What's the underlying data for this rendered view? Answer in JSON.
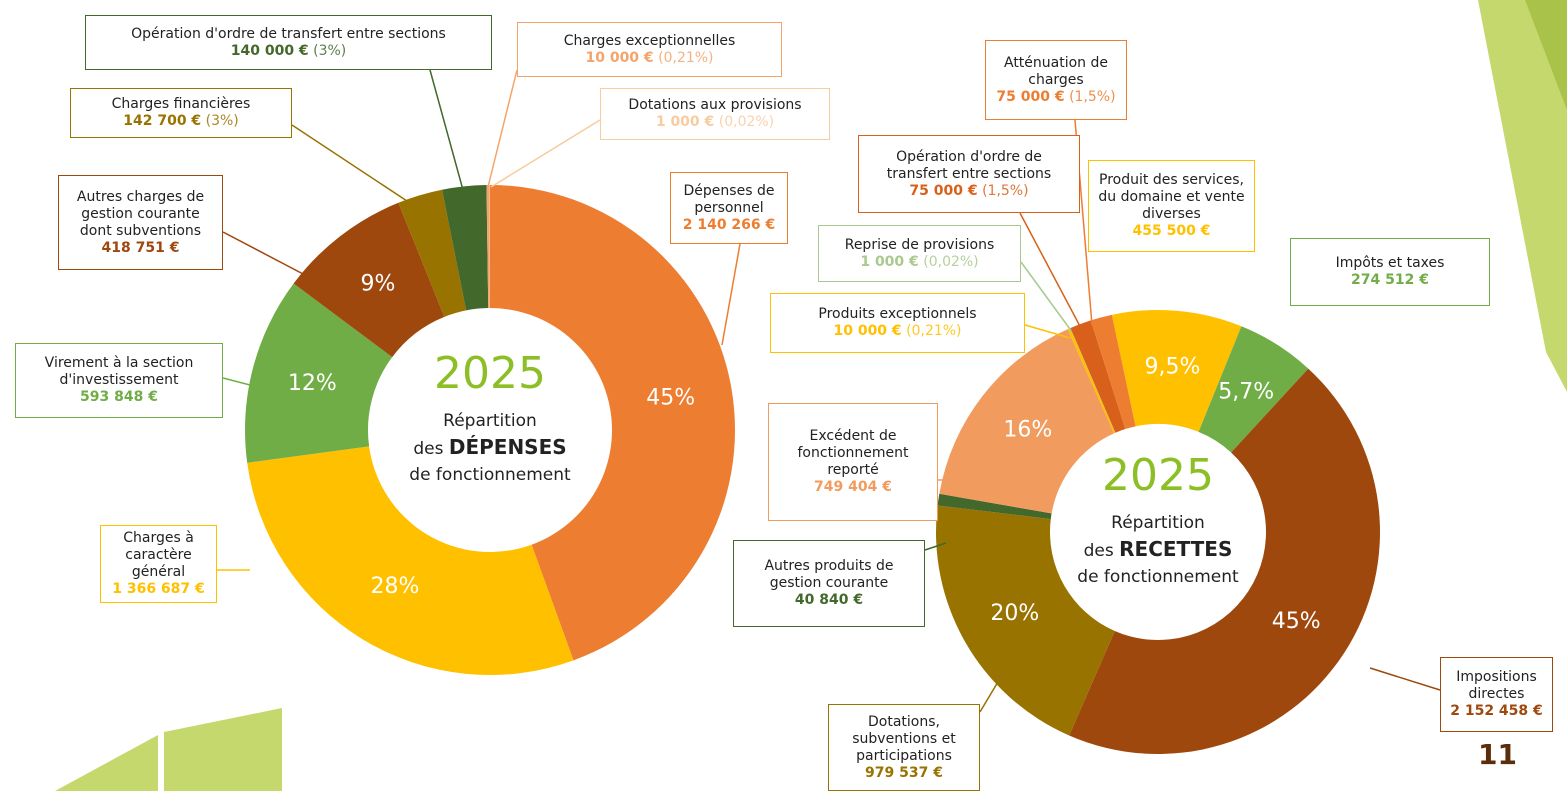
{
  "page_number": "11",
  "chart_data": [
    {
      "type": "pie",
      "center_year": "2025",
      "center_text": "Répartition",
      "center_prefix": "des",
      "center_keyword": "Dépenses",
      "center_suffix": "de fonctionnement",
      "categories": [
        "Dépenses de personnel",
        "Charges à caractère général",
        "Virement à la section d'investissement",
        "Autres charges de gestion courante dont subventions",
        "Charges financières",
        "Opération d'ordre de transfert entre sections",
        "Charges exceptionnelles",
        "Dotations aux provisions"
      ],
      "values": [
        2140266,
        1366687,
        593848,
        418751,
        142700,
        140000,
        10000,
        1000
      ],
      "value_labels": [
        "2 140 266 €",
        "1 366 687 €",
        "593 848 €",
        "418 751 €",
        "142 700 €",
        "140 000 €",
        "10 000 €",
        "1 000 €"
      ],
      "percents": [
        45,
        28,
        12,
        9,
        3,
        3,
        0.21,
        0.02
      ],
      "percent_labels": [
        "45%",
        "28%",
        "12%",
        "9%",
        "(3%)",
        "(3%)",
        "(0,21%)",
        "(0,02%)"
      ],
      "colors": [
        "#ed7d31",
        "#ffc000",
        "#70ad47",
        "#9e480e",
        "#997300",
        "#43682b",
        "#f4a46a",
        "#f8cba0"
      ]
    },
    {
      "type": "pie",
      "center_year": "2025",
      "center_text": "Répartition",
      "center_prefix": "des",
      "center_keyword": "Recettes",
      "center_suffix": "de fonctionnement",
      "categories": [
        "Produit des services, du domaine et vente diverses",
        "Impôts et taxes",
        "Impositions directes",
        "Dotations, subventions et participations",
        "Autres produits de gestion courante",
        "Excédent de fonctionnement reporté",
        "Produits exceptionnels",
        "Reprise de provisions",
        "Opération d'ordre de transfert entre sections",
        "Atténuation de charges"
      ],
      "values": [
        455500,
        274512,
        2152458,
        979537,
        40840,
        749404,
        10000,
        1000,
        75000,
        75000
      ],
      "value_labels": [
        "455 500 €",
        "274 512 €",
        "2 152 458 €",
        "979 537 €",
        "40 840 €",
        "749 404 €",
        "10 000 €",
        "1 000 €",
        "75 000 €",
        "75 000 €"
      ],
      "percents": [
        9.5,
        5.7,
        45,
        20,
        null,
        16,
        0.21,
        0.02,
        1.5,
        1.5
      ],
      "percent_labels": [
        "9,5%",
        "5,7%",
        "45%",
        "20%",
        null,
        "16%",
        "(0,21%)",
        "(0,02%)",
        "(1,5%)",
        "(1,5%)"
      ],
      "colors": [
        "#ffc000",
        "#70ad47",
        "#9e480e",
        "#997300",
        "#43682b",
        "#f19b5e",
        "#ffc000",
        "#a9c98e",
        "#d9601a",
        "#ed7d31"
      ]
    }
  ]
}
